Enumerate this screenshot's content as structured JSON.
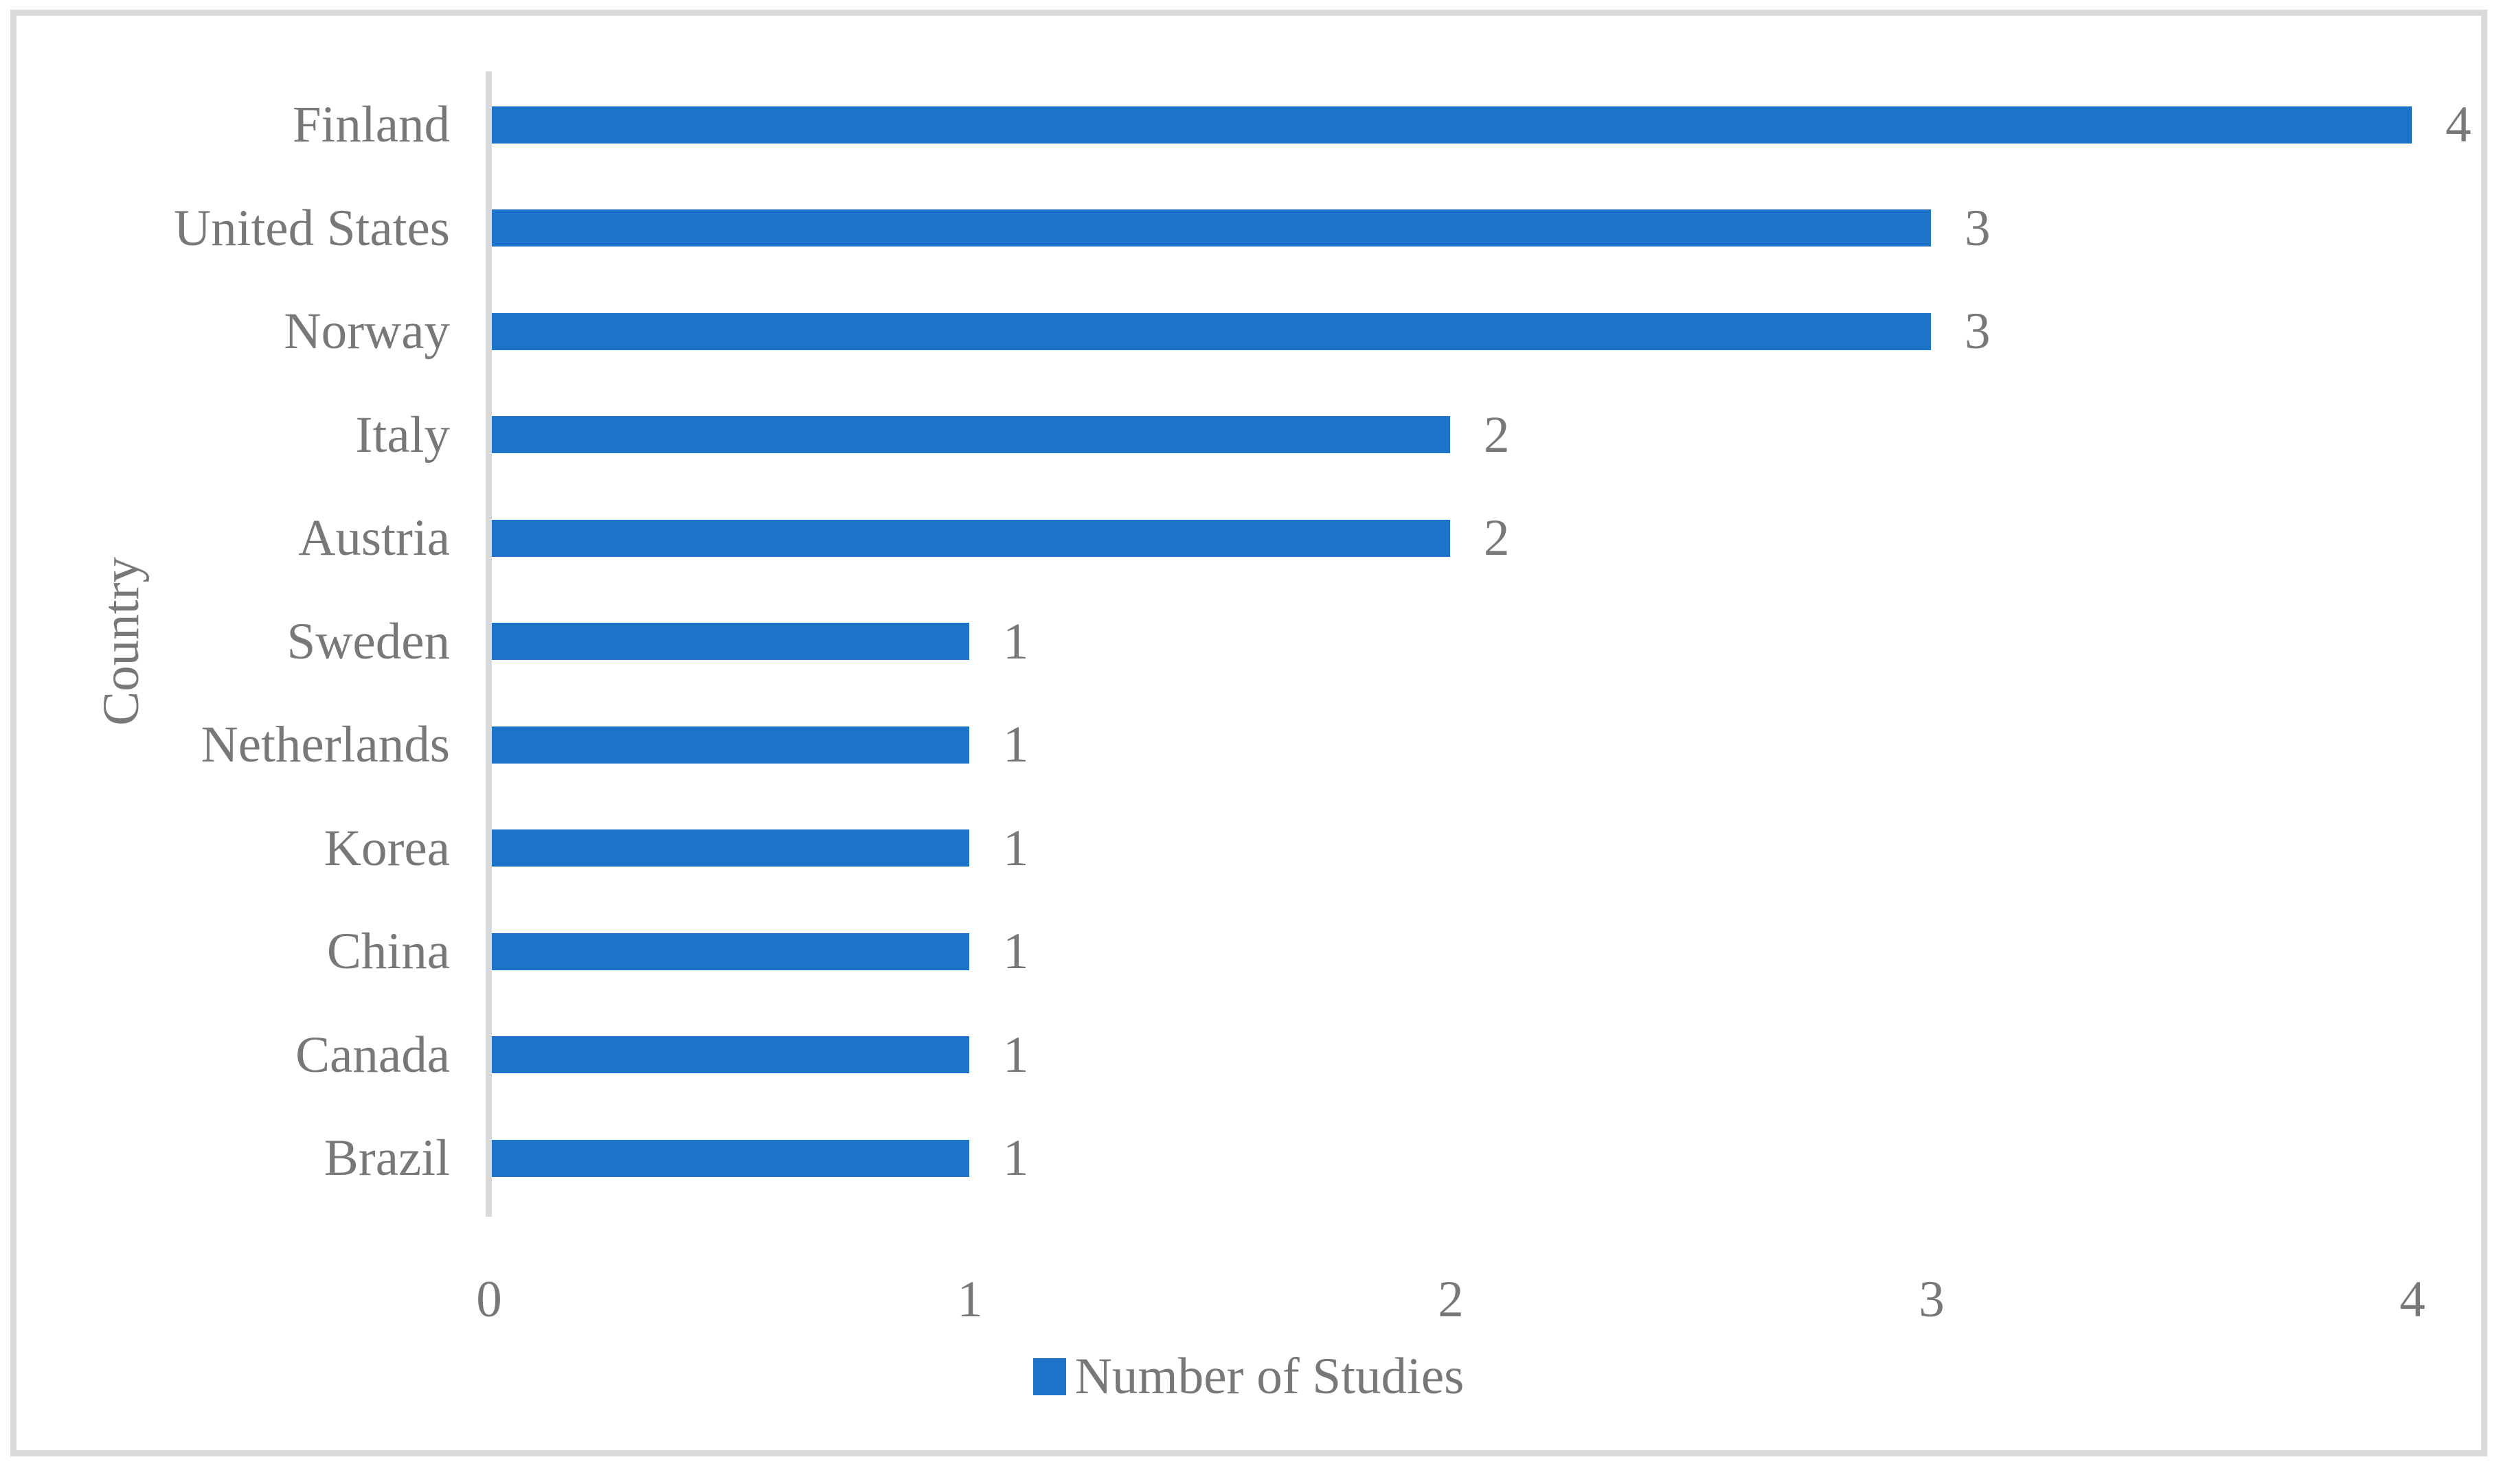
{
  "chart_data": {
    "type": "bar",
    "orientation": "horizontal",
    "title": "",
    "categories": [
      "Finland",
      "United States",
      "Norway",
      "Italy",
      "Austria",
      "Sweden",
      "Netherlands",
      "Korea",
      "China",
      "Canada",
      "Brazil"
    ],
    "values": [
      4,
      3,
      3,
      2,
      2,
      1,
      1,
      1,
      1,
      1,
      1
    ],
    "series_name": "Number of Studies",
    "ylabel": "Country",
    "xlabel": "",
    "xticks": [
      0,
      1,
      2,
      3,
      4
    ],
    "xlim": [
      0,
      4
    ],
    "grid": false,
    "data_labels": true,
    "legend_position": "bottom",
    "bar_color": "#1C74C8",
    "text_color": "#787878",
    "axis_color": "#D9D9D9"
  },
  "legend": {
    "label": "Number of Studies"
  },
  "axes": {
    "y_title": "Country"
  }
}
